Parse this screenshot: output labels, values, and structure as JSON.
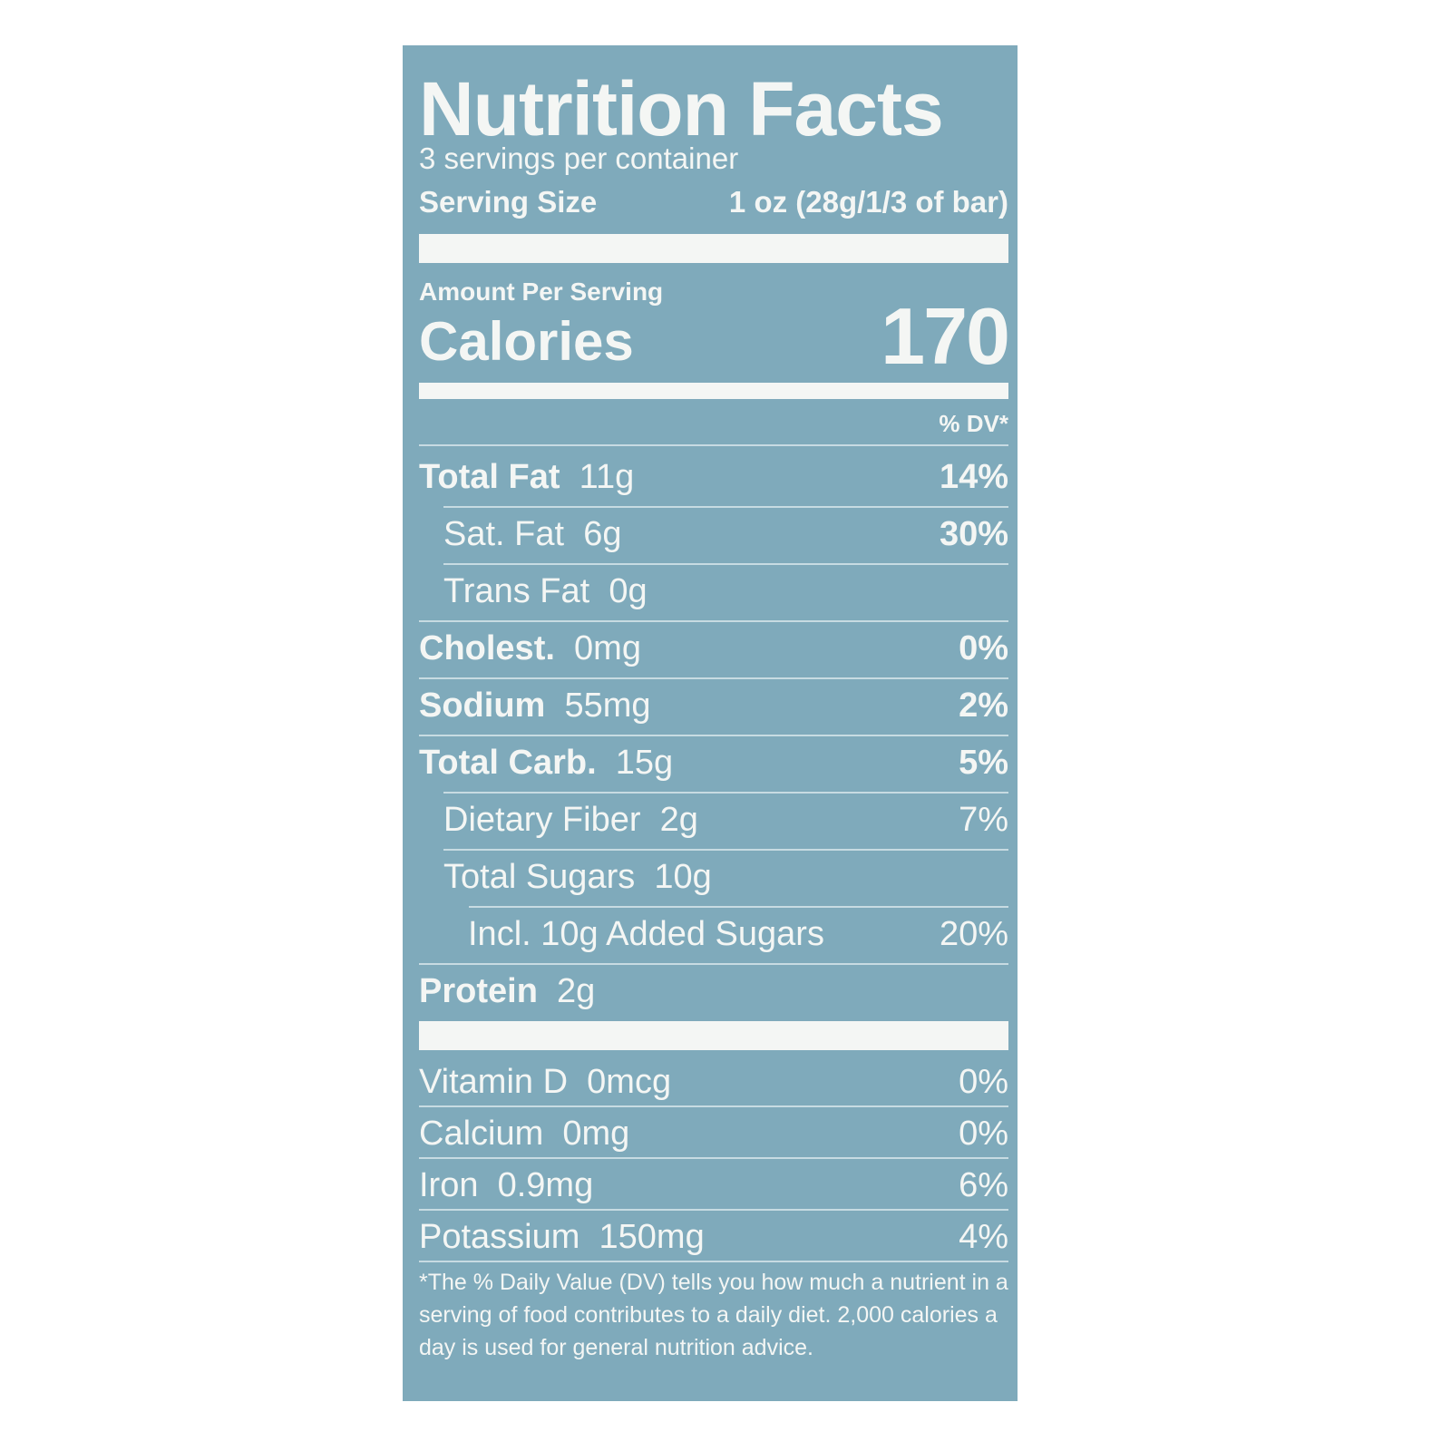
{
  "label": {
    "title": "Nutrition Facts",
    "servings_per_container": "3 servings per container",
    "serving_size_label": "Serving Size",
    "serving_size_value": "1 oz (28g/1/3 of bar)",
    "amount_per_serving": "Amount Per Serving",
    "calories_label": "Calories",
    "calories_value": "170",
    "dv_header": "% DV*",
    "nutrients": [
      {
        "name": "Total Fat",
        "amount": "11g",
        "dv": "14%",
        "bold": true,
        "indent": 0
      },
      {
        "name": "Sat. Fat",
        "amount": "6g",
        "dv": "30%",
        "bold": false,
        "indent": 1
      },
      {
        "name": "Trans Fat",
        "amount": "0g",
        "dv": "",
        "bold": false,
        "indent": 1
      },
      {
        "name": "Cholest.",
        "amount": "0mg",
        "dv": "0%",
        "bold": true,
        "indent": 0
      },
      {
        "name": "Sodium",
        "amount": "55mg",
        "dv": "2%",
        "bold": true,
        "indent": 0
      },
      {
        "name": "Total Carb.",
        "amount": "15g",
        "dv": "5%",
        "bold": true,
        "indent": 0
      },
      {
        "name": "Dietary Fiber",
        "amount": "2g",
        "dv": "7%",
        "bold": false,
        "indent": 1
      },
      {
        "name": "Total Sugars",
        "amount": "10g",
        "dv": "",
        "bold": false,
        "indent": 1
      },
      {
        "name": "Incl. 10g Added Sugars",
        "amount": "",
        "dv": "20%",
        "bold": false,
        "indent": 2
      },
      {
        "name": "Protein",
        "amount": "2g",
        "dv": "",
        "bold": true,
        "indent": 0
      }
    ],
    "vitamins": [
      {
        "name": "Vitamin D",
        "amount": "0mcg",
        "dv": "0%"
      },
      {
        "name": "Calcium",
        "amount": "0mg",
        "dv": "0%"
      },
      {
        "name": "Iron",
        "amount": "0.9mg",
        "dv": "6%"
      },
      {
        "name": "Potassium",
        "amount": "150mg",
        "dv": "4%"
      }
    ],
    "footnote": "*The % Daily Value (DV) tells you how much a nutrient in a serving of food contributes to a daily diet. 2,000 calories a day is used for general nutrition advice.",
    "colors": {
      "background": "#7faabb",
      "text": "#f4f6f4"
    }
  }
}
